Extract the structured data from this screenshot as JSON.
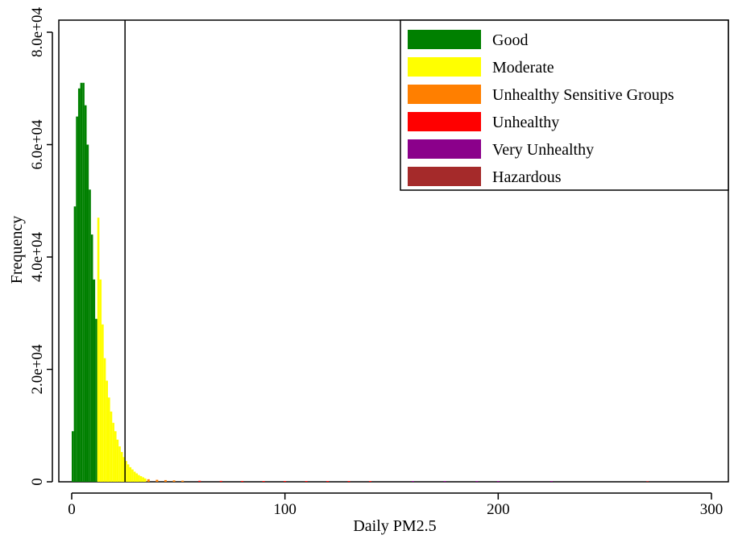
{
  "chart_data": {
    "type": "bar",
    "xlabel": "Daily PM2.5",
    "ylabel": "Frequency",
    "xlim": [
      0,
      300
    ],
    "ylim": [
      0,
      80000
    ],
    "x_ticks": [
      "0",
      "100",
      "200",
      "300"
    ],
    "y_ticks": [
      "0",
      "2.0e+04",
      "4.0e+04",
      "6.0e+04",
      "8.0e+04"
    ],
    "reference_line_x": 25,
    "legend_position": "top-right",
    "grid": false,
    "series": [
      {
        "name": "Good",
        "color": "#008000",
        "x": [
          0.5,
          1.5,
          2.5,
          3.5,
          4.5,
          5.5,
          6.5,
          7.5,
          8.5,
          9.5,
          10.5,
          11.5
        ],
        "values": [
          9000,
          49000,
          65000,
          70000,
          71000,
          71000,
          67000,
          60000,
          52000,
          44000,
          36000,
          29000
        ]
      },
      {
        "name": "Moderate",
        "color": "#ffff00",
        "x": [
          12.5,
          13.5,
          14.5,
          15.5,
          16.5,
          17.5,
          18.5,
          19.5,
          20.5,
          21.5,
          22.5,
          23.5,
          24.5,
          25.5,
          26.5,
          27.5,
          28.5,
          29.5,
          30.5,
          31.5,
          32.5,
          33.5,
          34.5
        ],
        "values": [
          47000,
          36000,
          28000,
          22000,
          18000,
          15000,
          12500,
          10500,
          9000,
          7500,
          6300,
          5300,
          4400,
          3700,
          3100,
          2600,
          2200,
          1800,
          1500,
          1200,
          1000,
          800,
          600
        ]
      },
      {
        "name": "Unhealthy Sensitive Groups",
        "color": "#ff7f00",
        "x": [
          36,
          40,
          44,
          48,
          52
        ],
        "values": [
          450,
          350,
          300,
          250,
          200
        ]
      },
      {
        "name": "Unhealthy",
        "color": "#ff0000",
        "x": [
          60,
          70,
          80,
          90,
          100,
          110,
          120,
          130,
          140
        ],
        "values": [
          180,
          160,
          150,
          140,
          130,
          120,
          110,
          100,
          90
        ]
      },
      {
        "name": "Very Unhealthy",
        "color": "#8b008b",
        "x": [
          160,
          175,
          190,
          200,
          225
        ],
        "values": [
          80,
          70,
          60,
          50,
          40
        ]
      },
      {
        "name": "Hazardous",
        "color": "#a52a2a",
        "x": [
          270
        ],
        "values": [
          30
        ]
      }
    ]
  }
}
